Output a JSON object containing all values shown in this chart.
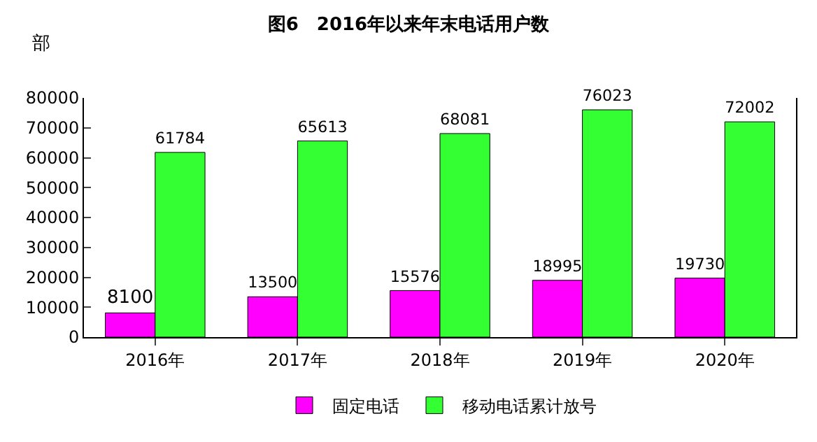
{
  "chart_data": {
    "type": "bar",
    "title": "图6　2016年以来年末电话用户数",
    "ylabel": "部",
    "categories": [
      "2016年",
      "2017年",
      "2018年",
      "2019年",
      "2020年"
    ],
    "series": [
      {
        "name": "固定电话",
        "color": "#ff00ff",
        "values": [
          8100,
          13500,
          15576,
          18995,
          19730
        ]
      },
      {
        "name": "移动电话累计放号",
        "color": "#33ff33",
        "values": [
          61784,
          65613,
          68081,
          76023,
          72002
        ]
      }
    ],
    "ylim": [
      0,
      80000
    ],
    "yticks": [
      0,
      10000,
      20000,
      30000,
      40000,
      50000,
      60000,
      70000,
      80000
    ],
    "data_labels": true,
    "legend": "bottom"
  }
}
